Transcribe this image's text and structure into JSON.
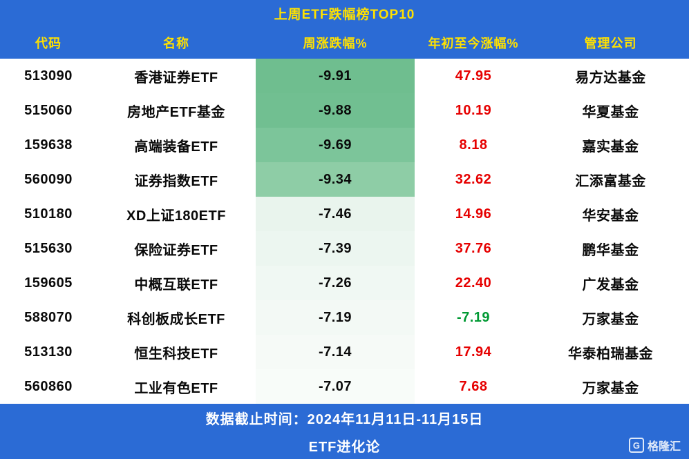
{
  "title": "上周ETF跌幅榜TOP10",
  "columns": [
    "代码",
    "名称",
    "周涨跌幅%",
    "年初至今涨幅%",
    "管理公司"
  ],
  "rows": [
    {
      "code": "513090",
      "name": "香港证券ETF",
      "weekly": "-9.91",
      "ytd": "47.95",
      "company": "易方达基金",
      "weekly_bg": "#6fbe8f",
      "ytd_color": "#e60000"
    },
    {
      "code": "515060",
      "name": "房地产ETF基金",
      "weekly": "-9.88",
      "ytd": "10.19",
      "company": "华夏基金",
      "weekly_bg": "#71bf91",
      "ytd_color": "#e60000"
    },
    {
      "code": "159638",
      "name": "高端装备ETF",
      "weekly": "-9.69",
      "ytd": "8.18",
      "company": "嘉实基金",
      "weekly_bg": "#7cc59a",
      "ytd_color": "#e60000"
    },
    {
      "code": "560090",
      "name": "证券指数ETF",
      "weekly": "-9.34",
      "ytd": "32.62",
      "company": "汇添富基金",
      "weekly_bg": "#8ecda6",
      "ytd_color": "#e60000"
    },
    {
      "code": "510180",
      "name": "XD上证180ETF",
      "weekly": "-7.46",
      "ytd": "14.96",
      "company": "华安基金",
      "weekly_bg": "#e9f4ed",
      "ytd_color": "#e60000"
    },
    {
      "code": "515630",
      "name": "保险证券ETF",
      "weekly": "-7.39",
      "ytd": "37.76",
      "company": "鹏华基金",
      "weekly_bg": "#ecf6f0",
      "ytd_color": "#e60000"
    },
    {
      "code": "159605",
      "name": "中概互联ETF",
      "weekly": "-7.26",
      "ytd": "22.40",
      "company": "广发基金",
      "weekly_bg": "#f0f8f3",
      "ytd_color": "#e60000"
    },
    {
      "code": "588070",
      "name": "科创板成长ETF",
      "weekly": "-7.19",
      "ytd": "-7.19",
      "company": "万家基金",
      "weekly_bg": "#f3f9f5",
      "ytd_color": "#009933"
    },
    {
      "code": "513130",
      "name": "恒生科技ETF",
      "weekly": "-7.14",
      "ytd": "17.94",
      "company": "华泰柏瑞基金",
      "weekly_bg": "#f6faf7",
      "ytd_color": "#e60000"
    },
    {
      "code": "560860",
      "name": "工业有色ETF",
      "weekly": "-7.07",
      "ytd": "7.68",
      "company": "万家基金",
      "weekly_bg": "#f8fcf9",
      "ytd_color": "#e60000"
    }
  ],
  "footer": {
    "line1": "数据截止时间：2024年11月11日-11月15日",
    "line2": "ETF进化论"
  },
  "logo": {
    "icon_letter": "G",
    "text": "格隆汇"
  },
  "colors": {
    "header_bg": "#2b6bd5",
    "title_color": "#ffe100",
    "text_color": "#0a0a0a",
    "up_color": "#e60000",
    "down_color": "#009933"
  },
  "chart_data": {
    "type": "table",
    "title": "上周ETF跌幅榜TOP10",
    "columns": [
      "代码",
      "名称",
      "周涨跌幅%",
      "年初至今涨幅%",
      "管理公司"
    ],
    "rows": [
      [
        "513090",
        "香港证券ETF",
        -9.91,
        47.95,
        "易方达基金"
      ],
      [
        "515060",
        "房地产ETF基金",
        -9.88,
        10.19,
        "华夏基金"
      ],
      [
        "159638",
        "高端装备ETF",
        -9.69,
        8.18,
        "嘉实基金"
      ],
      [
        "560090",
        "证券指数ETF",
        -9.34,
        32.62,
        "汇添富基金"
      ],
      [
        "510180",
        "XD上证180ETF",
        -7.46,
        14.96,
        "华安基金"
      ],
      [
        "515630",
        "保险证券ETF",
        -7.39,
        37.76,
        "鹏华基金"
      ],
      [
        "159605",
        "中概互联ETF",
        -7.26,
        22.4,
        "广发基金"
      ],
      [
        "588070",
        "科创板成长ETF",
        -7.19,
        -7.19,
        "万家基金"
      ],
      [
        "513130",
        "恒生科技ETF",
        -7.14,
        17.94,
        "华泰柏瑞基金"
      ],
      [
        "560860",
        "工业有色ETF",
        -7.07,
        7.68,
        "万家基金"
      ]
    ],
    "notes": [
      "数据截止时间：2024年11月11日-11月15日",
      "来源: ETF进化论 / 格隆汇"
    ],
    "weekly_column_style": "green shading scaled to magnitude of decline",
    "ytd_column_style": "red for positive, green for negative"
  }
}
